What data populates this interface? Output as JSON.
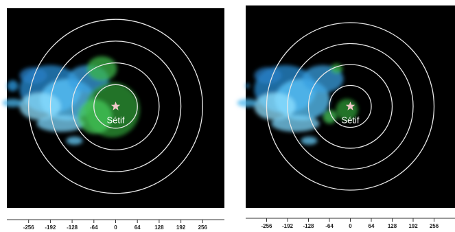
{
  "chart_data": [
    {
      "type": "radar",
      "annotation": "Sétif",
      "xlim": [
        -320,
        320
      ],
      "xticks": [
        -256,
        -192,
        -128,
        -64,
        0,
        64,
        128,
        192,
        256
      ]
    },
    {
      "type": "radar",
      "annotation": "Sétif",
      "xlim": [
        -320,
        320
      ],
      "xticks": [
        -256,
        -192,
        -128,
        -64,
        0,
        64,
        128,
        192,
        256
      ]
    }
  ]
}
